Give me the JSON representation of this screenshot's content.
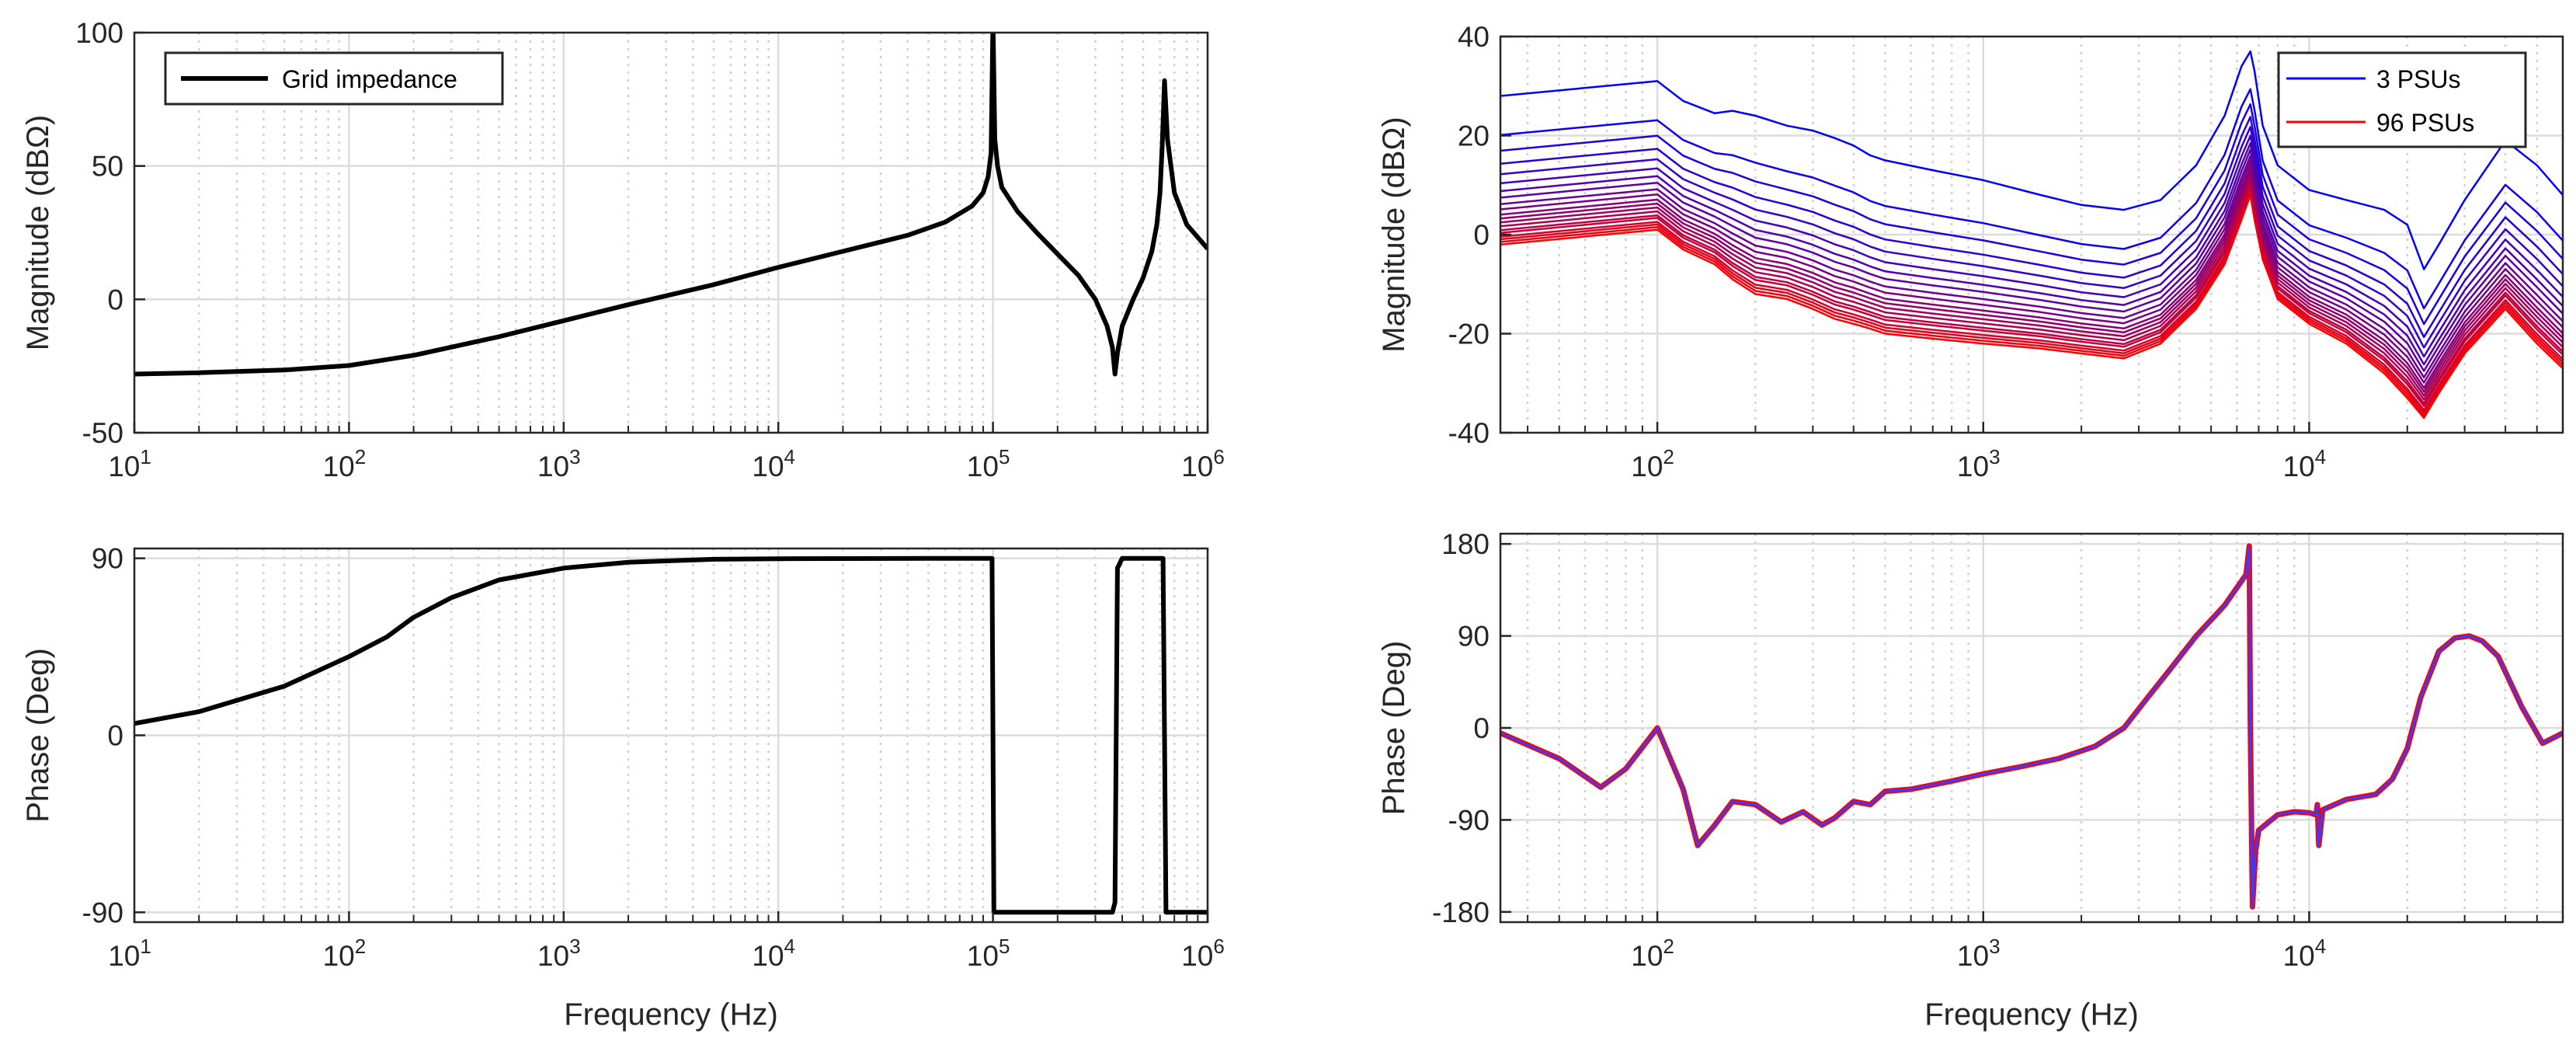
{
  "chart_data": [
    {
      "id": "grid-magnitude",
      "type": "line",
      "xscale": "log",
      "xlim": [
        10,
        1000000
      ],
      "ylim": [
        -50,
        100
      ],
      "yticks": [
        -50,
        0,
        50,
        100
      ],
      "xticks": [
        10,
        100,
        1000,
        10000,
        100000,
        1000000
      ],
      "xticklabels": [
        {
          "base": "10",
          "exp": "1"
        },
        {
          "base": "10",
          "exp": "2"
        },
        {
          "base": "10",
          "exp": "3"
        },
        {
          "base": "10",
          "exp": "4"
        },
        {
          "base": "10",
          "exp": "5"
        },
        {
          "base": "10",
          "exp": "6"
        }
      ],
      "xlabel": "",
      "ylabel": "Magnitude (dBΩ)",
      "grid": true,
      "legend": {
        "placement": "top-left",
        "entries": [
          {
            "label": "Grid impedance",
            "color": "#000000"
          }
        ]
      },
      "series": [
        {
          "name": "Grid impedance",
          "color": "#000000",
          "x": [
            10,
            20,
            50,
            100,
            200,
            500,
            1000,
            2000,
            5000,
            10000,
            20000,
            40000,
            60000,
            80000,
            90000,
            95000,
            98000,
            100000,
            102000,
            105000,
            110000,
            130000,
            160000,
            200000,
            250000,
            300000,
            340000,
            360000,
            370000,
            380000,
            400000,
            450000,
            500000,
            550000,
            580000,
            600000,
            615000,
            630000,
            650000,
            700000,
            800000,
            1000000
          ],
          "y": [
            -28,
            -27.5,
            -26.5,
            -24.8,
            -21,
            -14,
            -8,
            -2,
            5.5,
            12,
            18,
            24,
            29,
            35,
            40,
            46,
            55,
            105,
            60,
            50,
            42,
            33,
            25,
            17,
            9,
            0,
            -10,
            -18,
            -28,
            -20,
            -10,
            0,
            8,
            18,
            28,
            40,
            58,
            82,
            60,
            40,
            28,
            19
          ]
        }
      ]
    },
    {
      "id": "grid-phase",
      "type": "line",
      "xscale": "log",
      "xlim": [
        10,
        1000000
      ],
      "ylim": [
        -95,
        95
      ],
      "yticks": [
        -90,
        0,
        90
      ],
      "xticks": [
        10,
        100,
        1000,
        10000,
        100000,
        1000000
      ],
      "xticklabels": [
        {
          "base": "10",
          "exp": "1"
        },
        {
          "base": "10",
          "exp": "2"
        },
        {
          "base": "10",
          "exp": "3"
        },
        {
          "base": "10",
          "exp": "4"
        },
        {
          "base": "10",
          "exp": "5"
        },
        {
          "base": "10",
          "exp": "6"
        }
      ],
      "xlabel": "Frequency (Hz)",
      "ylabel": "Phase (Deg)",
      "grid": true,
      "series": [
        {
          "name": "Grid impedance",
          "color": "#000000",
          "x": [
            10,
            20,
            50,
            100,
            150,
            200,
            300,
            500,
            1000,
            2000,
            5000,
            10000,
            50000,
            99000,
            100000,
            101000,
            200000,
            360000,
            370000,
            380000,
            400000,
            600000,
            620000,
            630000,
            640000,
            1000000
          ],
          "y": [
            6,
            12,
            25,
            40,
            50,
            60,
            70,
            79,
            85,
            88,
            89.5,
            89.8,
            90,
            90,
            0,
            -90,
            -90,
            -90,
            -85,
            85,
            90,
            90,
            90,
            0,
            -90,
            -90
          ]
        }
      ]
    },
    {
      "id": "psu-magnitude",
      "type": "line",
      "xscale": "log",
      "xlim": [
        33,
        60000
      ],
      "ylim": [
        -40,
        40
      ],
      "yticks": [
        -40,
        -20,
        0,
        20,
        40
      ],
      "xticks": [
        100,
        1000,
        10000
      ],
      "xticklabels": [
        {
          "base": "10",
          "exp": "2"
        },
        {
          "base": "10",
          "exp": "3"
        },
        {
          "base": "10",
          "exp": "4"
        }
      ],
      "xlabel": "",
      "ylabel": "Magnitude (dBΩ)",
      "grid": true,
      "legend": {
        "placement": "top-right",
        "entries": [
          {
            "label": "3 PSUs",
            "color": "#0000ff"
          },
          {
            "label": "96 PSUs",
            "color": "#ff0000"
          }
        ]
      },
      "series_family": {
        "count": 20,
        "first": {
          "name": "3 PSUs",
          "color": "#0000ff"
        },
        "last": {
          "name": "96 PSUs",
          "color": "#ff0000"
        },
        "x": [
          33,
          100,
          120,
          150,
          170,
          200,
          250,
          300,
          350,
          400,
          450,
          500,
          700,
          1000,
          1500,
          2000,
          2700,
          3500,
          4500,
          5500,
          6200,
          6600,
          6800,
          7200,
          8000,
          10000,
          13000,
          17000,
          20000,
          22500,
          25000,
          30000,
          40000,
          50000,
          60000
        ],
        "top_y": [
          28,
          31,
          27,
          24.5,
          25,
          24,
          22,
          21,
          19.5,
          18,
          16,
          15,
          13,
          11,
          8,
          6,
          5,
          7,
          14,
          24,
          34,
          37,
          33,
          22,
          14,
          9,
          7,
          5,
          2,
          -7,
          -2,
          7,
          19,
          14,
          8
        ],
        "bottom_y": [
          -2,
          1,
          -3,
          -6,
          -9,
          -12,
          -13,
          -15,
          -17,
          -18,
          -19,
          -20,
          -21,
          -22,
          -23,
          -24,
          -25,
          -22,
          -15,
          -6,
          3,
          8,
          3,
          -5,
          -13,
          -18,
          -22,
          -28,
          -33,
          -37,
          -32,
          -24,
          -15,
          -22,
          -27
        ],
        "offsets_db": [
          0,
          3,
          4.2,
          5.2,
          6,
          6.7,
          7.3,
          7.8,
          8.3,
          8.7,
          9.1,
          9.4,
          9.7,
          10,
          10.3,
          10.5,
          10.8,
          11,
          11.2,
          11.4
        ]
      }
    },
    {
      "id": "psu-phase",
      "type": "line",
      "xscale": "log",
      "xlim": [
        33,
        60000
      ],
      "ylim": [
        -190,
        190
      ],
      "yticks": [
        -180,
        -90,
        0,
        90,
        180
      ],
      "xticks": [
        100,
        1000,
        10000
      ],
      "xticklabels": [
        {
          "base": "10",
          "exp": "2"
        },
        {
          "base": "10",
          "exp": "3"
        },
        {
          "base": "10",
          "exp": "4"
        }
      ],
      "xlabel": "Frequency (Hz)",
      "ylabel": "Phase (Deg)",
      "grid": true,
      "series": [
        {
          "name": "96 PSUs",
          "color": "#ff0000",
          "x": [
            33,
            50,
            67,
            80,
            100,
            120,
            133,
            150,
            170,
            200,
            240,
            280,
            320,
            350,
            400,
            450,
            500,
            600,
            800,
            1000,
            1300,
            1700,
            2200,
            2700,
            3200,
            3800,
            4500,
            5500,
            6400,
            6550,
            6600,
            6700,
            6850,
            7000,
            8000,
            9000,
            10000,
            10500,
            10600,
            10700,
            11000,
            13000,
            16000,
            18000,
            20000,
            22000,
            25000,
            28000,
            31000,
            34000,
            38000,
            45000,
            52000,
            60000
          ],
          "y": [
            -5,
            -30,
            -58,
            -40,
            0,
            -60,
            -115,
            -95,
            -72,
            -75,
            -92,
            -82,
            -95,
            -88,
            -72,
            -75,
            -62,
            -60,
            -52,
            -45,
            -38,
            -30,
            -18,
            0,
            30,
            60,
            90,
            120,
            150,
            178,
            0,
            -175,
            -120,
            -100,
            -85,
            -82,
            -83,
            -85,
            -75,
            -115,
            -80,
            -70,
            -65,
            -50,
            -20,
            30,
            75,
            88,
            90,
            85,
            70,
            20,
            -15,
            -5
          ]
        },
        {
          "name": "3 PSUs",
          "color": "#3b3bff",
          "x": [
            33,
            50,
            67,
            80,
            100,
            120,
            133,
            150,
            170,
            200,
            240,
            280,
            320,
            350,
            400,
            450,
            500,
            600,
            800,
            1000,
            1300,
            1700,
            2200,
            2700,
            3200,
            3800,
            4500,
            5500,
            6400,
            6550,
            6600,
            6700,
            6850,
            7000,
            8000,
            9000,
            10000,
            10500,
            10600,
            10700,
            11000,
            13000,
            16000,
            18000,
            20000,
            22000,
            25000,
            28000,
            31000,
            34000,
            38000,
            45000,
            52000,
            60000
          ],
          "y": [
            -5,
            -30,
            -58,
            -40,
            0,
            -60,
            -115,
            -95,
            -72,
            -75,
            -92,
            -82,
            -95,
            -88,
            -72,
            -75,
            -62,
            -60,
            -52,
            -45,
            -38,
            -30,
            -18,
            0,
            30,
            60,
            90,
            120,
            150,
            178,
            0,
            -175,
            -120,
            -100,
            -85,
            -82,
            -83,
            -85,
            -75,
            -115,
            -80,
            -70,
            -65,
            -50,
            -20,
            30,
            75,
            88,
            90,
            85,
            70,
            20,
            -15,
            -5
          ]
        }
      ]
    }
  ]
}
